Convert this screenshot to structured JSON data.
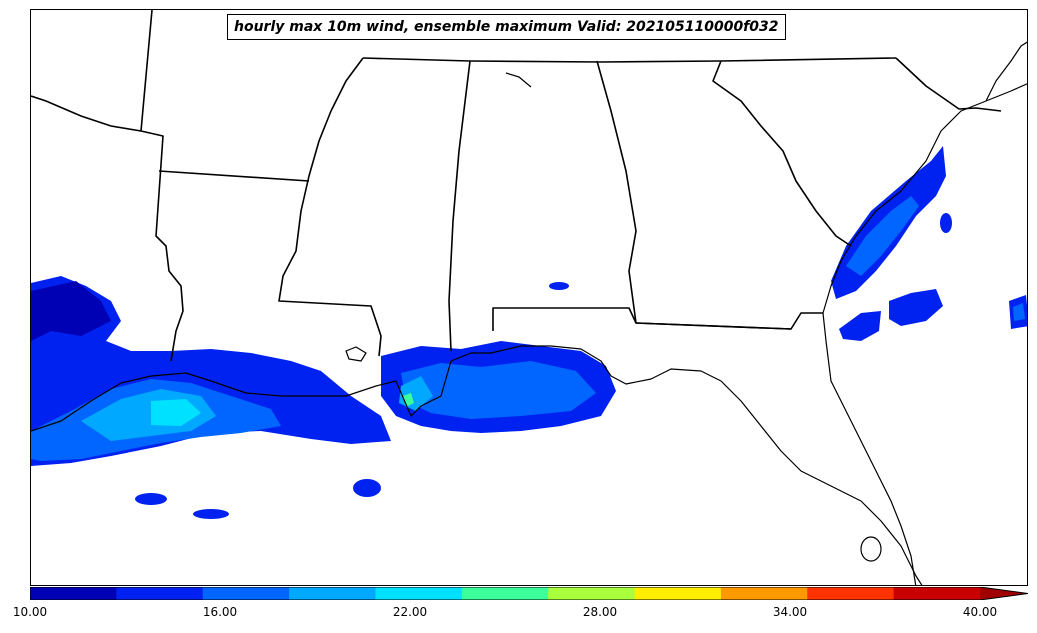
{
  "title": "hourly max 10m wind, ensemble maximum Valid: 202105110000f032",
  "colorbar": {
    "colors": [
      "#0000b4",
      "#0022f0",
      "#0066ff",
      "#00a8ff",
      "#00e1ff",
      "#3cff9c",
      "#a8ff3c",
      "#ffee00",
      "#ff9900",
      "#ff3300",
      "#c80000"
    ],
    "extend_color": "#a00000",
    "min": 10,
    "max": 40,
    "extend": "max",
    "tick_labels": [
      "10.00",
      "16.00",
      "22.00",
      "28.00",
      "34.00",
      "40.00"
    ]
  },
  "map": {
    "region": "US Gulf Coast / Southeast",
    "field": "hourly max 10m wind"
  }
}
